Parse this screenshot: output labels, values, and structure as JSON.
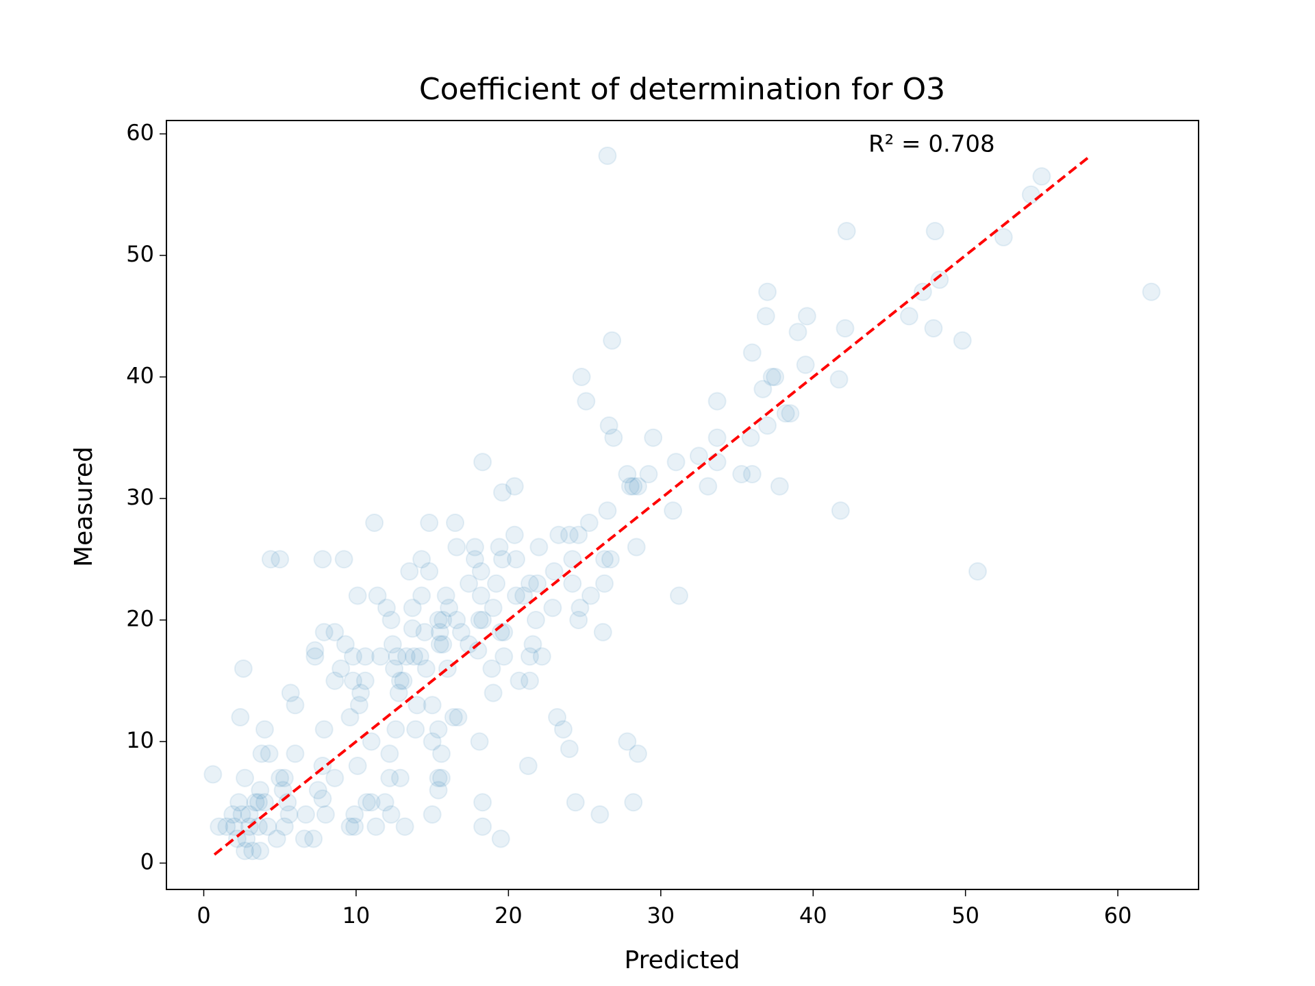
{
  "chart_data": {
    "type": "scatter",
    "title": "Coefficient of determination for O3",
    "xlabel": "Predicted",
    "ylabel": "Measured",
    "annotation": "R² = 0.708",
    "color": "#1f77b4",
    "alpha": 0.1,
    "xlim": [
      -2.45,
      65.3
    ],
    "ylim": [
      -2.17,
      61.1
    ],
    "xticks": [
      0,
      10,
      20,
      30,
      40,
      50,
      60
    ],
    "yticks": [
      0,
      10,
      20,
      30,
      40,
      50,
      60
    ],
    "grid": false,
    "x": [
      26.5,
      55,
      54.3,
      42.2,
      48,
      52.5,
      62.2,
      37,
      47.2,
      48.3,
      36.9,
      39.6,
      46.3,
      39,
      42.1,
      47.9,
      49.8,
      26.8,
      36,
      39.5,
      37.3,
      37.5,
      41.7,
      24.8,
      36.7,
      25.1,
      33.7,
      38.2,
      38.5,
      26.6,
      37,
      26.9,
      29.5,
      33.7,
      35.9,
      33.7,
      31,
      18.3,
      32.5,
      27.8,
      29.2,
      35.3,
      36,
      28,
      28.2,
      28.5,
      30.8,
      33.1,
      37.8,
      20.4,
      19.6,
      41.8,
      26.5,
      25.3,
      11.2,
      14.8,
      16.5,
      23.3,
      24,
      24.6,
      20.4,
      17.8,
      19.4,
      16.6,
      22,
      28.4,
      24.2,
      26.3,
      26.7,
      19.6,
      20.5,
      14.3,
      4.4,
      5,
      7.8,
      9.2,
      17.8,
      18.2,
      13.5,
      14.8,
      23,
      50.8,
      26.3,
      17.4,
      19.2,
      21.4,
      21.9,
      24.2,
      10.1,
      11.4,
      14.3,
      15.9,
      18.2,
      21,
      25.4,
      31.2,
      19,
      20.5,
      12,
      13.7,
      16.1,
      22.9,
      24.7,
      12.3,
      15.4,
      15.7,
      16.6,
      18.1,
      18.3,
      21.8,
      24.6,
      26.2,
      19.5,
      19.7,
      7.9,
      8.6,
      13.7,
      14.5,
      15.5,
      16.9,
      9.3,
      12.4,
      15.5,
      15.7,
      17.4,
      21.6,
      7.3,
      7.3,
      9.8,
      10.6,
      11.6,
      12.7,
      13.3,
      13.8,
      14.2,
      18,
      19.7,
      21.4,
      22.2,
      12.5,
      14.6,
      16,
      18.9,
      9,
      20.7,
      21.4,
      2.6,
      8.6,
      9.8,
      10.6,
      12.9,
      13.1,
      5.7,
      10.3,
      12.8,
      19,
      6,
      10.2,
      14,
      15,
      2.4,
      9.6,
      16.4,
      16.7,
      23.2,
      4,
      7.9,
      12.6,
      13.9,
      23.6,
      15.4,
      18.1,
      11,
      15,
      27.8,
      3.8,
      4.3,
      6,
      12.2,
      15.6,
      24,
      28.5,
      0.6,
      2.7,
      5,
      5.3,
      8.6,
      12.2,
      12.9,
      15.4,
      15.6,
      21.3,
      7.8,
      10.1,
      3.7,
      5.2,
      7.5,
      15.4,
      4,
      5.5,
      7.8,
      2.3,
      3.4,
      3.6,
      18.3,
      24.4,
      28.2,
      10.7,
      11,
      11.9,
      1.9,
      2.5,
      3,
      5.6,
      6.7,
      8,
      9.9,
      12.3,
      15,
      26,
      1,
      1.5,
      2,
      3,
      3.6,
      4.2,
      5.3,
      9.6,
      9.9,
      11.3,
      13.2,
      18.3,
      2.2,
      2.8,
      4.8,
      6.6,
      7.2,
      19.5,
      2.7,
      3.2,
      3.7
    ],
    "y": [
      58.2,
      56.5,
      55,
      52,
      52,
      51.5,
      47,
      47,
      47,
      48,
      45,
      45,
      45,
      43.7,
      44,
      44,
      43,
      43,
      42,
      41,
      40,
      40,
      39.8,
      40,
      39,
      38,
      38,
      37,
      37,
      36,
      36,
      35,
      35,
      35,
      35,
      33,
      33,
      33,
      33.5,
      32,
      32,
      32,
      32,
      31,
      31,
      31,
      29,
      31,
      31,
      31,
      30.5,
      29,
      29,
      28,
      28,
      28,
      28,
      27,
      27,
      27,
      27,
      26,
      26,
      26,
      26,
      26,
      25,
      25,
      25,
      25,
      25,
      25,
      25,
      25,
      25,
      25,
      25,
      24,
      24,
      24,
      24,
      24,
      23,
      23,
      23,
      23,
      23,
      23,
      22,
      22,
      22,
      22,
      22,
      22,
      22,
      22,
      21,
      22,
      21,
      21,
      21,
      21,
      21,
      20,
      20,
      20,
      20,
      20,
      20,
      20,
      20,
      19,
      19,
      19,
      19,
      19,
      19.3,
      19,
      19,
      19,
      18,
      18,
      18,
      18,
      18,
      18,
      17.5,
      17,
      17,
      17,
      17,
      17,
      17,
      17,
      17,
      17.5,
      17,
      17,
      17,
      16,
      16,
      16,
      16,
      16,
      15,
      15,
      16,
      15,
      15,
      15,
      15,
      15,
      14,
      14,
      14,
      14,
      13,
      13,
      13,
      13,
      12,
      12,
      12,
      12,
      12,
      11,
      11,
      11,
      11,
      11,
      11,
      10,
      10,
      10,
      10,
      9,
      9,
      9,
      9,
      9,
      9.4,
      9,
      7.3,
      7,
      7,
      7,
      7,
      7,
      7,
      7,
      7,
      8,
      8,
      8,
      6,
      6,
      6,
      6,
      5,
      5,
      5.3,
      5,
      5,
      5,
      5,
      5,
      5,
      5,
      5,
      5,
      4,
      4,
      4,
      4,
      4,
      4,
      4,
      4,
      4,
      4,
      3,
      3,
      3,
      3,
      3,
      3,
      3,
      3,
      3,
      3,
      3,
      3,
      2,
      2,
      2,
      2,
      2,
      2,
      1,
      1,
      1
    ],
    "fit_line": {
      "x": [
        0.7,
        58.1
      ],
      "y": [
        0.7,
        58.1
      ],
      "color": "#ff0000",
      "dashed": true
    }
  }
}
